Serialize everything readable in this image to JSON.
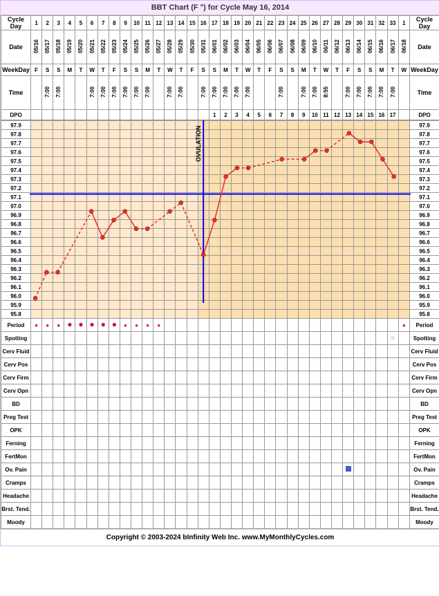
{
  "title": "BBT Chart (F °) for Cycle May 16, 2014",
  "footer": "Copyright © 2003-2024 bInfinity Web Inc.    www.MyMonthlyCycles.com",
  "labels": {
    "cycleDay": "Cycle Day",
    "date": "Date",
    "weekday": "WeekDay",
    "time": "Time",
    "dpo": "DPO"
  },
  "tracks": [
    "Period",
    "Spotting",
    "Cerv Fluid",
    "Cerv Pos",
    "Cerv Firm",
    "Cerv Opn",
    "BD",
    "Preg Test",
    "OPK",
    "Ferning",
    "FertMon",
    "Ov. Pain",
    "Cramps",
    "Headache",
    "Brst. Tend.",
    "Moody"
  ],
  "cycleDays": [
    1,
    2,
    3,
    4,
    5,
    6,
    7,
    8,
    9,
    10,
    11,
    12,
    13,
    14,
    15,
    16,
    17,
    18,
    19,
    20,
    21,
    22,
    23,
    24,
    25,
    26,
    27,
    28,
    29,
    30,
    31,
    32,
    33,
    1
  ],
  "dates": [
    "05/16",
    "05/17",
    "05/18",
    "05/19",
    "05/20",
    "05/21",
    "05/22",
    "05/23",
    "05/24",
    "05/25",
    "05/26",
    "05/27",
    "05/28",
    "05/29",
    "05/30",
    "05/31",
    "06/01",
    "06/02",
    "06/03",
    "06/04",
    "06/05",
    "06/06",
    "06/07",
    "06/08",
    "06/09",
    "06/10",
    "06/11",
    "06/12",
    "06/13",
    "06/14",
    "06/15",
    "06/16",
    "06/17",
    "06/18"
  ],
  "weekdays": [
    "F",
    "S",
    "S",
    "M",
    "T",
    "W",
    "T",
    "F",
    "S",
    "S",
    "M",
    "T",
    "W",
    "T",
    "F",
    "S",
    "S",
    "M",
    "T",
    "W",
    "T",
    "F",
    "S",
    "S",
    "M",
    "T",
    "W",
    "T",
    "F",
    "S",
    "S",
    "M",
    "T",
    "W"
  ],
  "times": [
    "",
    "7:00",
    "7:00",
    "",
    "",
    "7:00",
    "7:00",
    "7:00",
    "7:00",
    "7:00",
    "7:00",
    "",
    "7:00",
    "7:00",
    "",
    "7:00",
    "7:00",
    "7:00",
    "7:00",
    "7:00",
    "",
    "",
    "7:00",
    "",
    "7:00",
    "7:00",
    "8:55",
    "",
    "7:00",
    "7:00",
    "7:00",
    "7:00",
    "7:00",
    ""
  ],
  "dpo": [
    "",
    "",
    "",
    "",
    "",
    "",
    "",
    "",
    "",
    "",
    "",
    "",
    "",
    "",
    "",
    "",
    "1",
    "2",
    "3",
    "4",
    "5",
    "6",
    "7",
    "8",
    "9",
    "10",
    "11",
    "12",
    "13",
    "14",
    "15",
    "16",
    "17",
    ""
  ],
  "tempAxis": [
    97.9,
    97.8,
    97.7,
    97.6,
    97.5,
    97.4,
    97.3,
    97.2,
    97.1,
    97.0,
    96.9,
    96.8,
    96.7,
    96.6,
    96.5,
    96.4,
    96.3,
    96.2,
    96.1,
    96.0,
    95.9,
    95.8
  ],
  "coverline": 97.1,
  "ovulationDay": 16,
  "ovulationLabel": "OVULATION",
  "tempData": [
    {
      "day": 1,
      "temp": 95.9,
      "solid": true
    },
    {
      "day": 2,
      "temp": 96.2,
      "solid": false
    },
    {
      "day": 3,
      "temp": 96.2,
      "solid": false
    },
    {
      "day": 6,
      "temp": 96.9,
      "solid": true
    },
    {
      "day": 7,
      "temp": 96.6,
      "solid": true
    },
    {
      "day": 8,
      "temp": 96.8,
      "solid": true
    },
    {
      "day": 9,
      "temp": 96.9,
      "solid": true
    },
    {
      "day": 10,
      "temp": 96.7,
      "solid": true
    },
    {
      "day": 11,
      "temp": 96.7,
      "solid": false
    },
    {
      "day": 13,
      "temp": 96.9,
      "solid": true
    },
    {
      "day": 14,
      "temp": 97.0,
      "solid": false
    },
    {
      "day": 16,
      "temp": 96.4,
      "solid": true
    },
    {
      "day": 17,
      "temp": 96.8,
      "solid": true
    },
    {
      "day": 18,
      "temp": 97.3,
      "solid": true
    },
    {
      "day": 19,
      "temp": 97.4,
      "solid": true
    },
    {
      "day": 20,
      "temp": 97.4,
      "solid": false
    },
    {
      "day": 23,
      "temp": 97.5,
      "solid": false
    },
    {
      "day": 25,
      "temp": 97.5,
      "solid": true
    },
    {
      "day": 26,
      "temp": 97.6,
      "solid": true
    },
    {
      "day": 27,
      "temp": 97.6,
      "solid": false
    },
    {
      "day": 29,
      "temp": 97.8,
      "solid": true
    },
    {
      "day": 30,
      "temp": 97.7,
      "solid": true
    },
    {
      "day": 31,
      "temp": 97.7,
      "solid": true
    },
    {
      "day": 32,
      "temp": 97.5,
      "solid": true
    },
    {
      "day": 33,
      "temp": 97.3,
      "solid": true
    }
  ],
  "periodDays": [
    1,
    2,
    3,
    4,
    5,
    6,
    7,
    8,
    9,
    10,
    11,
    12
  ],
  "heavyPeriod": [
    4,
    5,
    6,
    7,
    8
  ],
  "spottingDays": [
    33
  ],
  "ovPainDays": [
    29
  ],
  "colors": {
    "grid_bg": "#ffe8cc",
    "luteal_bg": "#fcdfb0",
    "line": "#e03030",
    "marker": "#e03030",
    "coverline": "#0000ff",
    "ovline": "#0000ff",
    "border": "#999999",
    "title_bg": "#f8e8ff"
  },
  "chart": {
    "ymin": 95.8,
    "ymax": 97.9,
    "days": 34
  }
}
